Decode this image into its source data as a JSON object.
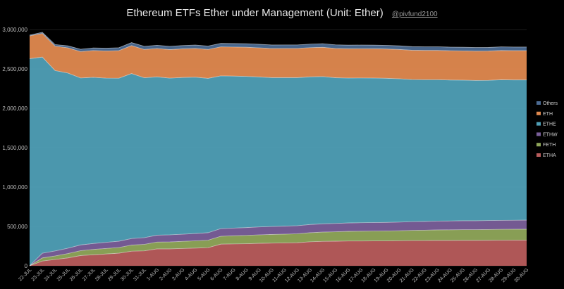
{
  "chart_data": {
    "type": "area",
    "stacked": true,
    "title": "Ethereum ETFs Ether under Management (Unit: Ether)",
    "handle": "@pivfund2100",
    "ylim": [
      0,
      3000000
    ],
    "yticks": [
      0,
      500000,
      1000000,
      1500000,
      2000000,
      2500000,
      3000000
    ],
    "ytick_labels": [
      "0",
      "500,000",
      "1,000,000",
      "1,500,000",
      "2,000,000",
      "2,500,000",
      "3,000,000"
    ],
    "grid": true,
    "legend_position": "right",
    "categories": [
      "22-JUL",
      "23-JUL",
      "24-JUL",
      "25-JUL",
      "26-JUL",
      "27-JUL",
      "28-JUL",
      "29-JUL",
      "30-JUL",
      "31-JUL",
      "1-AUG",
      "2-AUG",
      "3-AUG",
      "4-AUG",
      "5-AUG",
      "6-AUG",
      "7-AUG",
      "8-AUG",
      "9-AUG",
      "10-AUG",
      "11-AUG",
      "12-AUG",
      "13-AUG",
      "14-AUG",
      "15-AUG",
      "16-AUG",
      "17-AUG",
      "18-AUG",
      "19-AUG",
      "20-AUG",
      "21-AUG",
      "22-AUG",
      "23-AUG",
      "24-AUG",
      "25-AUG",
      "26-AUG",
      "27-AUG",
      "28-AUG",
      "29-AUG",
      "30-AUG"
    ],
    "series": [
      {
        "name": "ETHA",
        "color": "#b85c5c",
        "values": [
          0,
          60000,
          80000,
          100000,
          130000,
          140000,
          150000,
          160000,
          185000,
          190000,
          215000,
          215000,
          220000,
          225000,
          230000,
          275000,
          278000,
          280000,
          285000,
          288000,
          290000,
          293000,
          305000,
          310000,
          312000,
          315000,
          315000,
          316000,
          316000,
          318000,
          320000,
          320000,
          322000,
          322000,
          323000,
          323000,
          324000,
          325000,
          326000,
          326000
        ]
      },
      {
        "name": "FETH",
        "color": "#8fa65a",
        "values": [
          0,
          40000,
          45000,
          55000,
          62000,
          68000,
          70000,
          72000,
          78000,
          82000,
          86000,
          88000,
          90000,
          92000,
          95000,
          100000,
          103000,
          106000,
          108000,
          110000,
          112000,
          113000,
          115000,
          118000,
          120000,
          122000,
          124000,
          125000,
          126000,
          127000,
          130000,
          132000,
          134000,
          135000,
          136000,
          136000,
          137000,
          138000,
          138000,
          139000
        ]
      },
      {
        "name": "ETHW",
        "color": "#7a5f9a",
        "values": [
          0,
          60000,
          64000,
          68000,
          73000,
          75000,
          78000,
          80000,
          83000,
          85000,
          88000,
          90000,
          91000,
          93000,
          95000,
          97000,
          98000,
          99000,
          100000,
          101000,
          102000,
          103000,
          104000,
          105000,
          106000,
          107000,
          108000,
          108000,
          109000,
          110000,
          110000,
          111000,
          112000,
          112000,
          113000,
          113000,
          114000,
          114000,
          114000,
          115000
        ]
      },
      {
        "name": "ETHE",
        "color": "#4f9fb6",
        "values": [
          2630000,
          2490000,
          2290000,
          2225000,
          2120000,
          2110000,
          2085000,
          2070000,
          2095000,
          2030000,
          2010000,
          1990000,
          1990000,
          1985000,
          1960000,
          1940000,
          1930000,
          1920000,
          1905000,
          1890000,
          1885000,
          1880000,
          1875000,
          1870000,
          1850000,
          1840000,
          1838000,
          1835000,
          1830000,
          1820000,
          1805000,
          1800000,
          1795000,
          1790000,
          1785000,
          1782000,
          1780000,
          1785000,
          1782000,
          1780000
        ]
      },
      {
        "name": "ETH",
        "color": "#e0894f",
        "values": [
          290000,
          300000,
          310000,
          320000,
          335000,
          340000,
          345000,
          350000,
          355000,
          360000,
          360000,
          362000,
          364000,
          365000,
          367000,
          368000,
          369000,
          370000,
          370000,
          370000,
          371000,
          371000,
          371000,
          371000,
          372000,
          372000,
          372000,
          372000,
          372000,
          372000,
          372000,
          372000,
          372000,
          372000,
          372000,
          372000,
          372000,
          372000,
          372000,
          372000
        ]
      },
      {
        "name": "Others",
        "color": "#4c6b93",
        "values": [
          10000,
          15000,
          20000,
          25000,
          30000,
          33000,
          35000,
          37000,
          38000,
          40000,
          41000,
          42000,
          42000,
          43000,
          43000,
          44000,
          44000,
          45000,
          45000,
          45000,
          45000,
          45000,
          45000,
          46000,
          46000,
          46000,
          46000,
          46000,
          46000,
          46000,
          46000,
          46000,
          46000,
          46000,
          46000,
          46000,
          46000,
          46000,
          46000,
          46000
        ]
      }
    ],
    "legend_order": [
      "Others",
      "ETH",
      "ETHE",
      "ETHW",
      "FETH",
      "ETHA"
    ]
  }
}
